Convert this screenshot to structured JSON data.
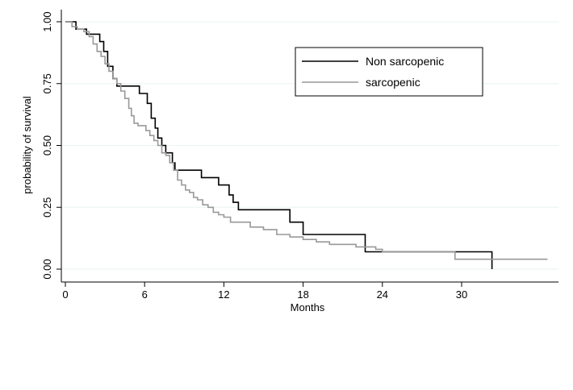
{
  "chart_data": {
    "type": "line",
    "step": true,
    "xlabel": "Months",
    "ylabel": "probability of survival",
    "xlim": [
      -1,
      37
    ],
    "ylim": [
      0,
      1
    ],
    "xticks": [
      0,
      6,
      12,
      18,
      24,
      30
    ],
    "yticks": [
      0,
      0.25,
      0.5,
      0.75,
      1
    ],
    "ytick_labels": [
      "0.00",
      "0.25",
      "0.50",
      "0.75",
      "1.00"
    ],
    "grid": "horizontal",
    "legend_position": "top-right",
    "series": [
      {
        "name": "Non sarcopenic",
        "color": "#000000",
        "x": [
          0,
          0.8,
          1.6,
          2.6,
          2.9,
          3.2,
          3.6,
          3.9,
          4.1,
          5.6,
          6.2,
          6.5,
          6.8,
          7.0,
          7.3,
          7.6,
          8.1,
          8.3,
          9.0,
          10.3,
          11.6,
          12.4,
          12.7,
          13.1,
          17.0,
          18.0,
          22.7,
          24.0,
          29.5,
          32.3
        ],
        "y": [
          1.0,
          0.97,
          0.95,
          0.92,
          0.88,
          0.82,
          0.77,
          0.74,
          0.74,
          0.71,
          0.67,
          0.61,
          0.57,
          0.53,
          0.5,
          0.47,
          0.43,
          0.4,
          0.4,
          0.37,
          0.34,
          0.3,
          0.27,
          0.24,
          0.19,
          0.14,
          0.07,
          0.07,
          0.07,
          0.0
        ]
      },
      {
        "name": "sarcopenic",
        "color": "#999999",
        "x": [
          0,
          0.5,
          0.9,
          1.4,
          1.8,
          2.1,
          2.4,
          2.7,
          3.0,
          3.3,
          3.6,
          3.9,
          4.2,
          4.5,
          4.8,
          5.0,
          5.2,
          5.5,
          5.8,
          6.1,
          6.4,
          6.7,
          7.0,
          7.3,
          7.6,
          7.9,
          8.2,
          8.5,
          8.8,
          9.1,
          9.4,
          9.7,
          10.0,
          10.4,
          10.8,
          11.2,
          11.6,
          12.0,
          12.5,
          13.0,
          14.0,
          15.0,
          16.0,
          17.0,
          18.0,
          19.0,
          20.0,
          22.0,
          23.5,
          24.0,
          29.5,
          36.5
        ],
        "y": [
          1.0,
          0.98,
          0.97,
          0.96,
          0.94,
          0.91,
          0.88,
          0.86,
          0.83,
          0.8,
          0.77,
          0.75,
          0.72,
          0.69,
          0.65,
          0.62,
          0.59,
          0.58,
          0.58,
          0.56,
          0.54,
          0.52,
          0.5,
          0.47,
          0.46,
          0.43,
          0.4,
          0.36,
          0.34,
          0.32,
          0.31,
          0.29,
          0.28,
          0.26,
          0.25,
          0.23,
          0.22,
          0.21,
          0.19,
          0.19,
          0.17,
          0.16,
          0.14,
          0.13,
          0.12,
          0.11,
          0.1,
          0.09,
          0.08,
          0.07,
          0.04,
          0.04
        ]
      }
    ]
  }
}
